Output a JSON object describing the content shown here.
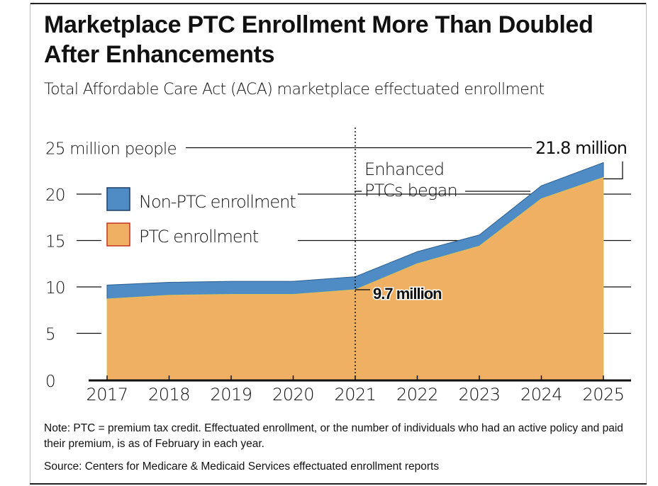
{
  "title": "Marketplace PTC Enrollment More Than Doubled After Enhancements",
  "subtitle": "Total Affordable Care Act (ACA) marketplace effectuated enrollment",
  "note": "Note: PTC = premium tax credit. Effectuated enrollment, or the number of individuals who had an active policy and paid their premium, is as of February in each year.",
  "source": "Source: Centers for Medicare & Medicaid Services effectuated enrollment reports",
  "chart_data": {
    "type": "area",
    "stacked": true,
    "x": [
      "2017",
      "2018",
      "2019",
      "2020",
      "2021",
      "2022",
      "2023",
      "2024",
      "2025"
    ],
    "series": [
      {
        "name": "PTC enrollment",
        "color": "#f0b063",
        "values": [
          8.7,
          9.1,
          9.2,
          9.2,
          9.7,
          12.5,
          14.4,
          19.5,
          21.8
        ]
      },
      {
        "name": "Non-PTC enrollment",
        "color": "#4f8bc4",
        "values": [
          1.5,
          1.4,
          1.4,
          1.4,
          1.4,
          1.3,
          1.2,
          1.4,
          1.6
        ]
      }
    ],
    "ylim": [
      0,
      25
    ],
    "yticks": [
      "0",
      "5",
      "10",
      "15",
      "20",
      "25 million people"
    ],
    "ytick_values": [
      0,
      5,
      10,
      15,
      20,
      25
    ],
    "grid": true,
    "legend": "top-left",
    "annotations": [
      {
        "text": "Enhanced",
        "text2": "PTCs began",
        "x": "2021"
      },
      {
        "text": "9.7 million",
        "x": "2021",
        "y": 9.7
      },
      {
        "text": "21.8 million",
        "x": "2025",
        "y": 21.8
      }
    ]
  }
}
